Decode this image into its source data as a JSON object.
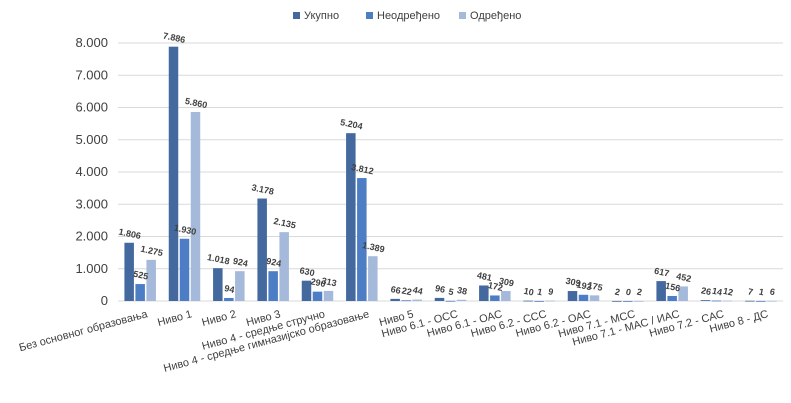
{
  "chart_data": {
    "type": "bar",
    "categories": [
      "Без основног образовања",
      "Ниво 1",
      "Ниво 2",
      "Ниво 3",
      "Ниво 4 - средње стручно",
      "Ниво 4 - средње гимназијско образовање",
      "Ниво 5",
      "Ниво 6.1 - ОСС",
      "Ниво 6.1 - ОАС",
      "Ниво 6.2 - ССС",
      "Ниво 6.2 - ОАС",
      "Ниво 7.1 - МСС",
      "Ниво 7.1 - МАС / ИАС",
      "Ниво 7.2 - САС",
      "Ниво 8 - ДС"
    ],
    "series": [
      {
        "name": "Укупно",
        "color": "#44699f",
        "values": [
          1806,
          7886,
          1018,
          3178,
          630,
          5204,
          66,
          96,
          481,
          10,
          309,
          2,
          617,
          26,
          7
        ],
        "labels": [
          "1.806",
          "7.886",
          "1.018",
          "3.178",
          "630",
          "5.204",
          "66",
          "96",
          "481",
          "10",
          "309",
          "2",
          "617",
          "26",
          "7"
        ]
      },
      {
        "name": "Неодређено",
        "color": "#4d7dc5",
        "values": [
          525,
          1930,
          94,
          924,
          290,
          3812,
          22,
          5,
          172,
          1,
          193,
          0,
          156,
          14,
          1
        ],
        "labels": [
          "525",
          "1.930",
          "94",
          "924",
          "290",
          "3.812",
          "22",
          "5",
          "172",
          "1",
          "193",
          "0",
          "156",
          "14",
          "1"
        ]
      },
      {
        "name": "Одређено",
        "color": "#a5b9db",
        "values": [
          1275,
          5860,
          924,
          2135,
          313,
          1389,
          44,
          38,
          309,
          9,
          175,
          2,
          452,
          12,
          6
        ],
        "labels": [
          "1.275",
          "5.860",
          "924",
          "2.135",
          "313",
          "1.389",
          "44",
          "38",
          "309",
          "9",
          "175",
          "2",
          "452",
          "12",
          "6"
        ]
      }
    ],
    "yticks": [
      "0",
      "1.000",
      "2.000",
      "3.000",
      "4.000",
      "5.000",
      "6.000",
      "7.000",
      "8.000"
    ],
    "ylim": [
      0,
      8000
    ],
    "grid": true,
    "legend": "top-center"
  }
}
